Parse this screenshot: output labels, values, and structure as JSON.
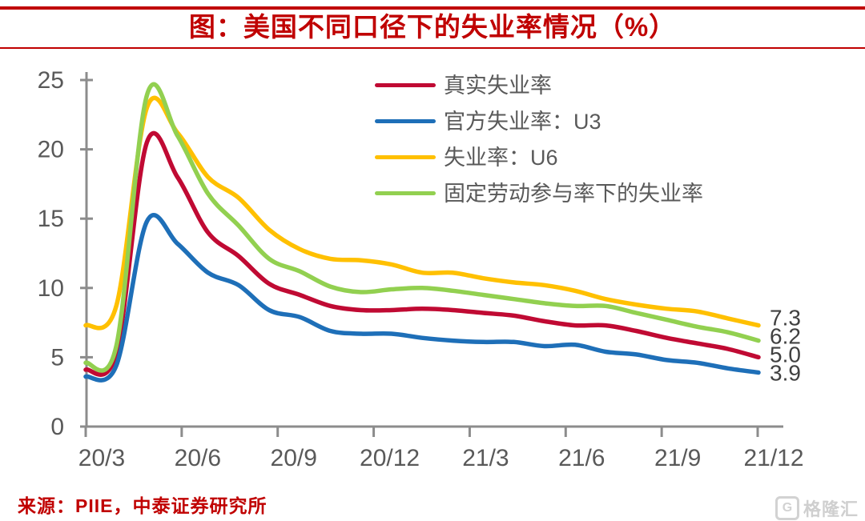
{
  "title": "图：美国不同口径下的失业率情况（%）",
  "source": "来源：PIIE，中泰证券研究所",
  "watermark": {
    "logo_letter": "G",
    "logo_text": "格隆汇"
  },
  "colors": {
    "title_red": "#c00000",
    "axis_line": "#8c8c8c",
    "axis_label": "#595959",
    "end_label": "#404040"
  },
  "chart_data": {
    "type": "line",
    "title": "图：美国不同口径下的失业率情况（%）",
    "xlabel": "",
    "ylabel": "",
    "ylim": [
      0,
      25
    ],
    "y_ticks": [
      0,
      5,
      10,
      15,
      20,
      25
    ],
    "x_tick_labels": [
      "20/3",
      "20/6",
      "20/9",
      "20/12",
      "21/3",
      "21/6",
      "21/9",
      "21/12"
    ],
    "x": [
      "20/2",
      "20/3",
      "20/4",
      "20/5",
      "20/6",
      "20/7",
      "20/8",
      "20/9",
      "20/10",
      "20/11",
      "20/12",
      "21/1",
      "21/2",
      "21/3",
      "21/4",
      "21/5",
      "21/6",
      "21/7",
      "21/8",
      "21/9",
      "21/10",
      "21/11",
      "21/12"
    ],
    "grid": false,
    "legend_position": "upper-center",
    "smoothed": true,
    "series": [
      {
        "name": "真实失业率",
        "color": "#c00a33",
        "end_label": "5.0",
        "values": [
          4.1,
          5.3,
          20.5,
          18.0,
          14.0,
          12.3,
          10.3,
          9.5,
          8.7,
          8.4,
          8.4,
          8.5,
          8.4,
          8.2,
          8.0,
          7.6,
          7.3,
          7.3,
          6.9,
          6.4,
          6.0,
          5.6,
          5.0
        ]
      },
      {
        "name": "官方失业率：U3",
        "color": "#1e6fb8",
        "end_label": "3.9",
        "values": [
          3.6,
          4.4,
          14.8,
          13.2,
          11.1,
          10.2,
          8.4,
          7.9,
          6.9,
          6.7,
          6.7,
          6.4,
          6.2,
          6.1,
          6.1,
          5.8,
          5.9,
          5.4,
          5.2,
          4.8,
          4.6,
          4.2,
          3.9
        ]
      },
      {
        "name": "失业率：U6",
        "color": "#ffc000",
        "end_label": "7.3",
        "values": [
          7.3,
          8.7,
          23.0,
          21.2,
          18.0,
          16.5,
          14.2,
          12.8,
          12.1,
          12.0,
          11.7,
          11.1,
          11.1,
          10.7,
          10.4,
          10.2,
          9.8,
          9.2,
          8.8,
          8.5,
          8.3,
          7.8,
          7.3
        ]
      },
      {
        "name": "固定劳动参与率下的失业率",
        "color": "#92d050",
        "end_label": "6.2",
        "values": [
          4.6,
          5.8,
          23.9,
          21.0,
          16.8,
          14.5,
          12.1,
          11.2,
          10.1,
          9.7,
          9.9,
          10.0,
          9.8,
          9.5,
          9.2,
          8.9,
          8.7,
          8.7,
          8.2,
          7.7,
          7.2,
          6.8,
          6.2
        ]
      }
    ]
  }
}
